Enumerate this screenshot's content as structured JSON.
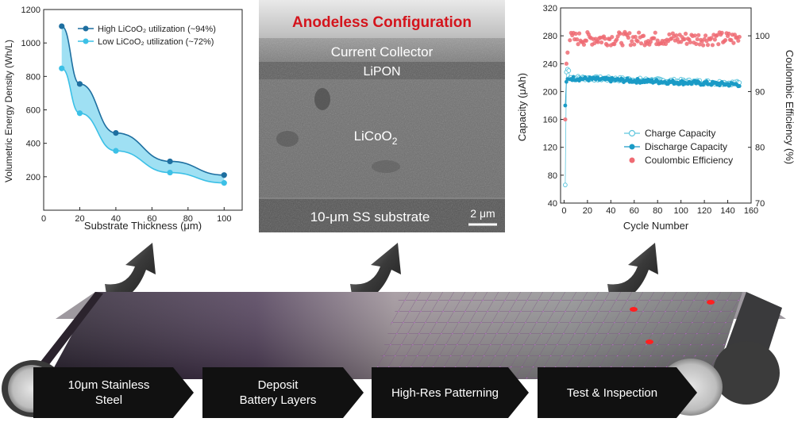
{
  "energy_chart": {
    "chart_data": {
      "type": "line",
      "x": [
        10,
        20,
        40,
        70,
        100
      ],
      "series": [
        {
          "name": "High LiCoO₂ utilization (~94%)",
          "values": [
            1100,
            755,
            462,
            292,
            210
          ],
          "color": "#1e6fa0"
        },
        {
          "name": "Low LiCoO₂ utilization (~72%)",
          "values": [
            848,
            580,
            355,
            225,
            163
          ],
          "color": "#3cc0e6"
        }
      ],
      "xlabel": "Substrate Thickness (μm)",
      "ylabel": "Volumetric Energy Density (Wh/L)",
      "xlim": [
        0,
        110
      ],
      "ylim": [
        0,
        1200
      ],
      "xticks": [
        0,
        20,
        40,
        60,
        80,
        100
      ],
      "yticks": [
        200,
        400,
        600,
        800,
        1000,
        1200
      ],
      "fill_between": true,
      "legend": "top-right"
    }
  },
  "cycle_chart": {
    "chart_data": {
      "type": "scatter",
      "xlabel": "Cycle Number",
      "ylabel": "Capacity (μAh)",
      "y2label": "Coulombic Efficiency (%)",
      "xlim": [
        -3,
        160
      ],
      "ylim": [
        40,
        320
      ],
      "y2lim": [
        70,
        105
      ],
      "xticks": [
        0,
        20,
        40,
        60,
        80,
        100,
        120,
        140,
        160
      ],
      "yticks": [
        40,
        80,
        120,
        160,
        200,
        240,
        280,
        320
      ],
      "y2ticks": [
        70,
        80,
        90,
        100
      ],
      "series": [
        {
          "name": "Charge Capacity",
          "color": "#5fc6dd",
          "marker": "open-circle",
          "axis": "left",
          "early": [
            [
              1,
              66
            ],
            [
              2,
              228
            ],
            [
              3,
              232
            ],
            [
              4,
              230
            ]
          ],
          "level": 220,
          "level_end": 212,
          "spread": 3
        },
        {
          "name": "Discharge Capacity",
          "color": "#1a9bc6",
          "marker": "filled-circle",
          "axis": "left",
          "early": [
            [
              1,
              180
            ],
            [
              2,
              214
            ],
            [
              3,
              218
            ]
          ],
          "level": 219,
          "level_end": 210,
          "spread": 3
        },
        {
          "name": "Coulombic Efficiency",
          "color": "#ef6b73",
          "marker": "filled-circle",
          "axis": "right",
          "early": [
            [
              1,
              85
            ],
            [
              2,
              95
            ],
            [
              3,
              97
            ]
          ],
          "level": 99.5,
          "level_end": 99.5,
          "spread": 1.2
        }
      ],
      "legend": "center-right"
    }
  },
  "sem_image": {
    "title": "Anodeless Configuration",
    "layers": {
      "collector": "Current Collector",
      "lipon": "LiPON",
      "cathode_base": "LiCoO",
      "cathode_sub": "2",
      "substrate": "10-μm SS substrate"
    },
    "scale_bar": "2 μm",
    "title_color": "#d4141c"
  },
  "process_steps": [
    {
      "line1": "10μm Stainless",
      "line2": "Steel"
    },
    {
      "line1": "Deposit",
      "line2": "Battery Layers"
    },
    {
      "line1": "High-Res Patterning",
      "line2": ""
    },
    {
      "line1": "Test & Inspection",
      "line2": ""
    }
  ],
  "arrows": [
    {
      "name": "arrow-up-1"
    },
    {
      "name": "arrow-up-2"
    },
    {
      "name": "arrow-up-3"
    }
  ]
}
